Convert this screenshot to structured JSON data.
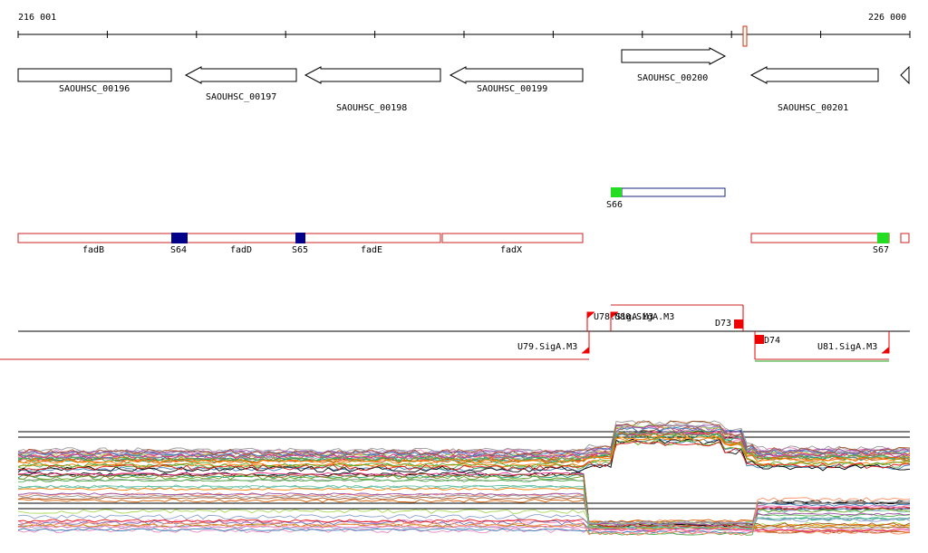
{
  "ruler": {
    "start_label": "216 001",
    "end_label": "226 000"
  },
  "genes": [
    {
      "label": "SAOUHSC_00196",
      "strand": "+"
    },
    {
      "label": "SAOUHSC_00197",
      "strand": "-"
    },
    {
      "label": "SAOUHSC_00198",
      "strand": "-"
    },
    {
      "label": "SAOUHSC_00199",
      "strand": "-"
    },
    {
      "label": "SAOUHSC_00200",
      "strand": "+"
    },
    {
      "label": "SAOUHSC_00201",
      "strand": "-"
    }
  ],
  "segments": [
    {
      "label": "S64",
      "color": "#00008b"
    },
    {
      "label": "S65",
      "color": "#00008b"
    },
    {
      "label": "S66",
      "color": "#22dd22"
    },
    {
      "label": "S67",
      "color": "#22dd22"
    }
  ],
  "operons": [
    {
      "label": "fadB"
    },
    {
      "label": "fadD"
    },
    {
      "label": "fadE"
    },
    {
      "label": "fadX"
    }
  ],
  "promoters": [
    {
      "label": "U78.SigA.M3"
    },
    {
      "label": "U80.SigA.M3"
    },
    {
      "label": "U79.SigA.M3"
    },
    {
      "label": "D73"
    },
    {
      "label": "D74"
    },
    {
      "label": "U81.SigA.M3"
    }
  ],
  "colors": {
    "operon_outline": "#cc2222",
    "promoter_mark": "#ee0000",
    "gene_outline": "#000000",
    "segment_outline": "#1a237e"
  }
}
